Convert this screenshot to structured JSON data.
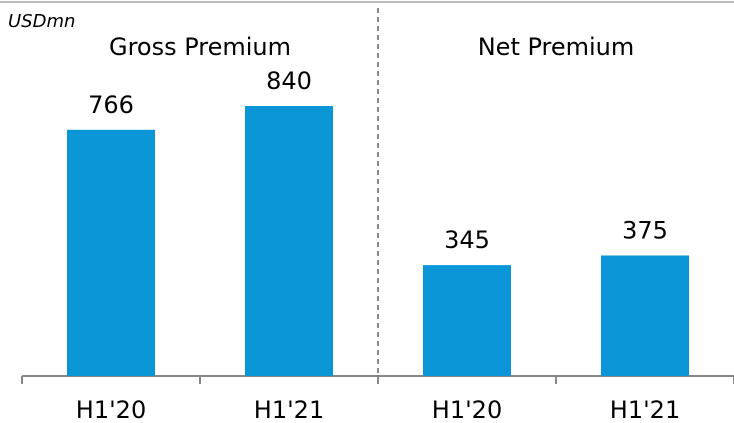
{
  "chart_data": {
    "type": "bar",
    "unit_label": "USDmn",
    "groups": [
      "Gross Premium",
      "Net Premium"
    ],
    "categories": [
      "H1'20",
      "H1'21",
      "H1'20",
      "H1'21"
    ],
    "values": [
      766,
      840,
      345,
      375
    ],
    "color": "#0a96d6"
  }
}
